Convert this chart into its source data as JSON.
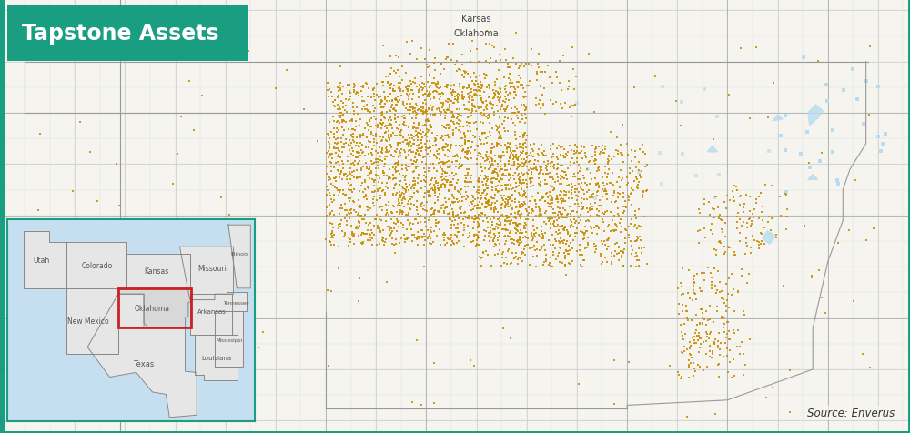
{
  "title": "Tapstone Assets",
  "title_bg_color": "#1a9e82",
  "title_text_color": "#ffffff",
  "border_color": "#1a9e82",
  "map_bg_color": "#f5f4ef",
  "source_text": "Source: Enverus",
  "well_color": "#c8900a",
  "well_marker_size": 3.5,
  "scatter_alpha": 0.9,
  "state_border_color": "#999999",
  "county_border_color": "#cccccc",
  "water_color": "#b8ddf0",
  "label_kansas": "Karsas",
  "label_oklahoma": "Oklahoma",
  "inset_border_color": "#1a9e82",
  "ok_highlight_color": "#cc2222",
  "map_xlim": [
    -103.2,
    -94.2
  ],
  "map_ylim": [
    33.4,
    37.6
  ]
}
